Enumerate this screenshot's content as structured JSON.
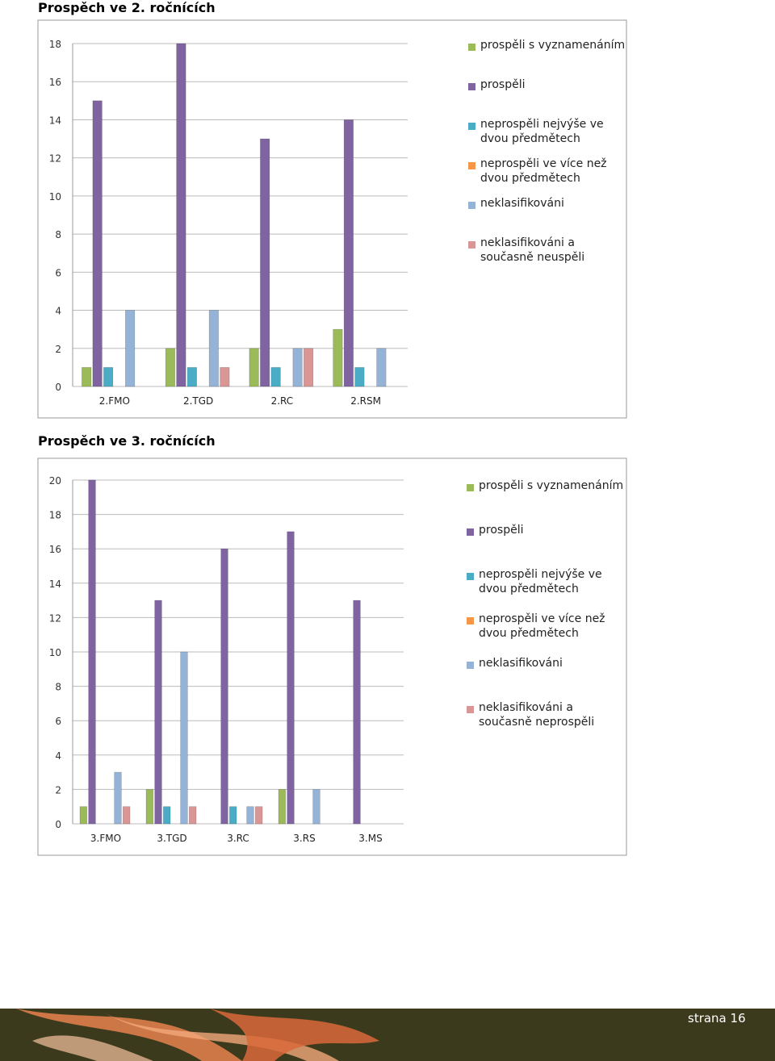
{
  "chart_data": [
    {
      "type": "bar",
      "title": "Prospěch ve 2. ročnících",
      "categories": [
        "2.FMO",
        "2.TGD",
        "2.RC",
        "2.RSM"
      ],
      "series": [
        {
          "name": "prospěli s vyznamenáním",
          "color": "#9bbb59",
          "values": [
            1,
            2,
            2,
            3
          ]
        },
        {
          "name": "prospěli",
          "color": "#8064a2",
          "values": [
            15,
            18,
            13,
            14
          ]
        },
        {
          "name": "neprospěli nejvýše ve dvou předmětech",
          "color": "#4bacc6",
          "values": [
            1,
            1,
            1,
            1
          ]
        },
        {
          "name": "neprospěli ve více než dvou předmětech",
          "color": "#f79646",
          "values": [
            0,
            0,
            0,
            0
          ]
        },
        {
          "name": "neklasifikováni",
          "color": "#95b3d7",
          "values": [
            4,
            4,
            2,
            2
          ]
        },
        {
          "name": "neklasifikováni a současně neuspěli",
          "color": "#d99694",
          "values": [
            0,
            1,
            2,
            0
          ]
        }
      ],
      "ylim": [
        0,
        18
      ],
      "yticks": [
        0,
        2,
        4,
        6,
        8,
        10,
        12,
        14,
        16,
        18
      ],
      "grid": true,
      "legend": "right"
    },
    {
      "type": "bar",
      "title": "Prospěch ve 3. ročnících",
      "categories": [
        "3.FMO",
        "3.TGD",
        "3.RC",
        "3.RS",
        "3.MS"
      ],
      "series": [
        {
          "name": "prospěli s vyznamenáním",
          "color": "#9bbb59",
          "values": [
            1,
            2,
            0,
            2,
            0
          ]
        },
        {
          "name": "prospěli",
          "color": "#8064a2",
          "values": [
            20,
            13,
            16,
            17,
            13
          ]
        },
        {
          "name": "neprospěli nejvýše ve dvou předmětech",
          "color": "#4bacc6",
          "values": [
            0,
            1,
            1,
            0,
            0
          ]
        },
        {
          "name": "neprospěli ve více než dvou předmětech",
          "color": "#f79646",
          "values": [
            0,
            0,
            0,
            0,
            0
          ]
        },
        {
          "name": "neklasifikováni",
          "color": "#95b3d7",
          "values": [
            3,
            10,
            1,
            2,
            0
          ]
        },
        {
          "name": "neklasifikováni a současně neprospěli",
          "color": "#d99694",
          "values": [
            1,
            1,
            1,
            0,
            0
          ]
        }
      ],
      "ylim": [
        0,
        20
      ],
      "yticks": [
        0,
        2,
        4,
        6,
        8,
        10,
        12,
        14,
        16,
        18,
        20
      ],
      "grid": true,
      "legend": "right"
    }
  ],
  "footer": "strana 16"
}
